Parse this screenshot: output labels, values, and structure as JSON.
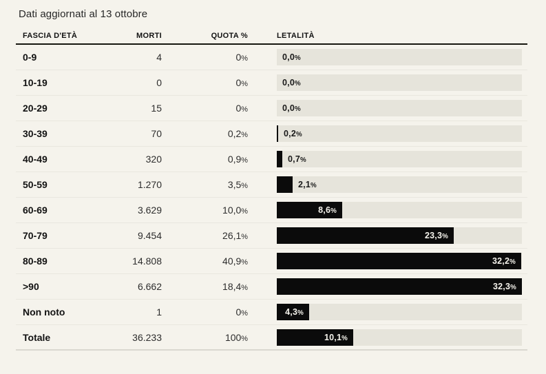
{
  "title": "Dati aggiornati al 13 ottobre",
  "table": {
    "headers": [
      "FASCIA D'ETÀ",
      "MORTI",
      "QUOTA %",
      "LETALITÀ"
    ],
    "rows": [
      {
        "fascia": "0-9",
        "morti": "4",
        "quota": "0%",
        "letalita": "0,0%",
        "letalita_value": 0.0
      },
      {
        "fascia": "10-19",
        "morti": "0",
        "quota": "0%",
        "letalita": "0,0%",
        "letalita_value": 0.0
      },
      {
        "fascia": "20-29",
        "morti": "15",
        "quota": "0%",
        "letalita": "0,0%",
        "letalita_value": 0.0
      },
      {
        "fascia": "30-39",
        "morti": "70",
        "quota": "0,2%",
        "letalita": "0,2%",
        "letalita_value": 0.2
      },
      {
        "fascia": "40-49",
        "morti": "320",
        "quota": "0,9%",
        "letalita": "0,7%",
        "letalita_value": 0.7
      },
      {
        "fascia": "50-59",
        "morti": "1.270",
        "quota": "3,5%",
        "letalita": "2,1%",
        "letalita_value": 2.1
      },
      {
        "fascia": "60-69",
        "morti": "3.629",
        "quota": "10,0%",
        "letalita": "8,6%",
        "letalita_value": 8.6
      },
      {
        "fascia": "70-79",
        "morti": "9.454",
        "quota": "26,1%",
        "letalita": "23,3%",
        "letalita_value": 23.3
      },
      {
        "fascia": "80-89",
        "morti": "14.808",
        "quota": "40,9%",
        "letalita": "32,2%",
        "letalita_value": 32.2
      },
      {
        "fascia": ">90",
        "morti": "6.662",
        "quota": "18,4%",
        "letalita": "32,3%",
        "letalita_value": 32.3
      },
      {
        "fascia": "Non noto",
        "morti": "1",
        "quota": "0%",
        "letalita": "4,3%",
        "letalita_value": 4.3
      },
      {
        "fascia": "Totale",
        "morti": "36.233",
        "quota": "100%",
        "letalita": "10,1%",
        "letalita_value": 10.1
      }
    ]
  },
  "chart_data": {
    "type": "bar",
    "orientation": "horizontal",
    "title": "Dati aggiornati al 13 ottobre",
    "categories": [
      "0-9",
      "10-19",
      "20-29",
      "30-39",
      "40-49",
      "50-59",
      "60-69",
      "70-79",
      "80-89",
      ">90",
      "Non noto",
      "Totale"
    ],
    "series": [
      {
        "name": "Morti",
        "values": [
          4,
          0,
          15,
          70,
          320,
          1270,
          3629,
          9454,
          14808,
          6662,
          1,
          36233
        ]
      },
      {
        "name": "Quota %",
        "values": [
          0,
          0,
          0,
          0.2,
          0.9,
          3.5,
          10.0,
          26.1,
          40.9,
          18.4,
          0,
          100
        ]
      },
      {
        "name": "Letalità %",
        "values": [
          0.0,
          0.0,
          0.0,
          0.2,
          0.7,
          2.1,
          8.6,
          23.3,
          32.2,
          32.3,
          4.3,
          10.1
        ]
      }
    ],
    "bar_series": "Letalità %",
    "scale_max": 32.3,
    "xlabel": "",
    "ylabel": "",
    "legend": false,
    "grid": false
  },
  "colors": {
    "background": "#f5f3ec",
    "bar_fill": "#0b0b0b",
    "bar_track": "#e6e4db",
    "text_dark": "#121212",
    "text_number": "#2d2d2d",
    "bar_label_inside": "#f5f3ec",
    "header_rule": "#16160f"
  }
}
